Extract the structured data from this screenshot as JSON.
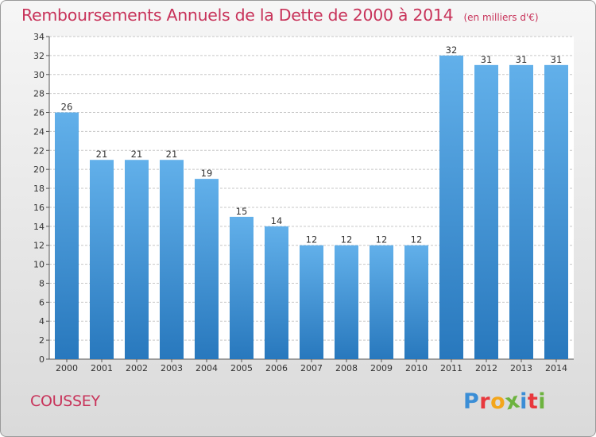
{
  "header": {
    "title": "Remboursements Annuels de la Dette de 2000 à 2014",
    "unit": "(en milliers d'€)"
  },
  "footer": {
    "city": "COUSSEY",
    "logo": "Proxiti"
  },
  "logo_letter_colors": [
    "#3b8ed6",
    "#e8383d",
    "#f3a61b",
    "#6db33f",
    "#3b8ed6",
    "#e8383d",
    "#6db33f"
  ],
  "colors": {
    "bar_light": "#62b0ea",
    "bar_dark": "#2878bd",
    "title": "#c8335a",
    "plot_bg": "#ffffff",
    "grid": "#c7c7c7"
  },
  "chart_data": {
    "type": "bar",
    "title": "Remboursements Annuels de la Dette de 2000 à 2014",
    "subtitle": "(en milliers d'€)",
    "xlabel": "",
    "ylabel": "",
    "categories": [
      "2000",
      "2001",
      "2002",
      "2003",
      "2004",
      "2005",
      "2006",
      "2007",
      "2008",
      "2009",
      "2010",
      "2011",
      "2012",
      "2013",
      "2014"
    ],
    "values": [
      26,
      21,
      21,
      21,
      19,
      15,
      14,
      12,
      12,
      12,
      12,
      32,
      31,
      31,
      31
    ],
    "data_labels": [
      "26",
      "21",
      "21",
      "21",
      "19",
      "15",
      "14",
      "12",
      "12",
      "12",
      "12",
      "32",
      "31",
      "31",
      "31"
    ],
    "ylim": [
      0,
      34
    ],
    "yticks": [
      0,
      2,
      4,
      6,
      8,
      10,
      12,
      14,
      16,
      18,
      20,
      22,
      24,
      26,
      28,
      30,
      32,
      34
    ],
    "grid": true,
    "legend": "none"
  }
}
